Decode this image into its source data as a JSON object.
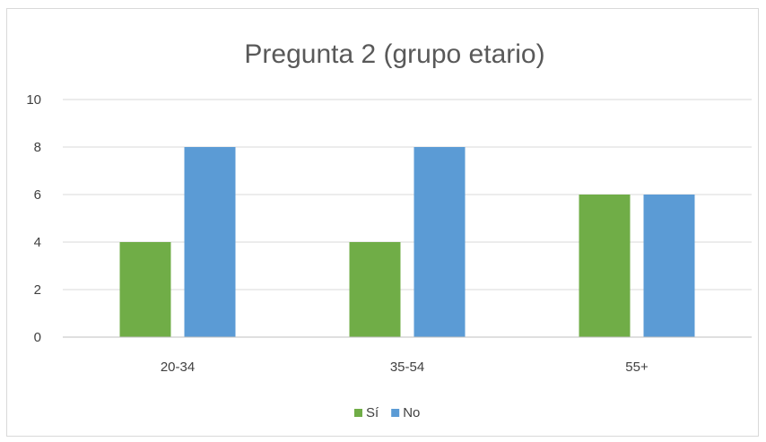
{
  "chart_data": {
    "type": "bar",
    "title": "Pregunta 2 (grupo etario)",
    "categories": [
      "20-34",
      "35-54",
      "55+"
    ],
    "series": [
      {
        "name": "Sí",
        "values": [
          4,
          4,
          6
        ],
        "color": "#70ad47"
      },
      {
        "name": "No",
        "values": [
          8,
          8,
          6
        ],
        "color": "#5b9bd5"
      }
    ],
    "ylim": [
      0,
      10
    ],
    "yticks": [
      0,
      2,
      4,
      6,
      8,
      10
    ],
    "grid": true,
    "legend_position": "bottom"
  }
}
